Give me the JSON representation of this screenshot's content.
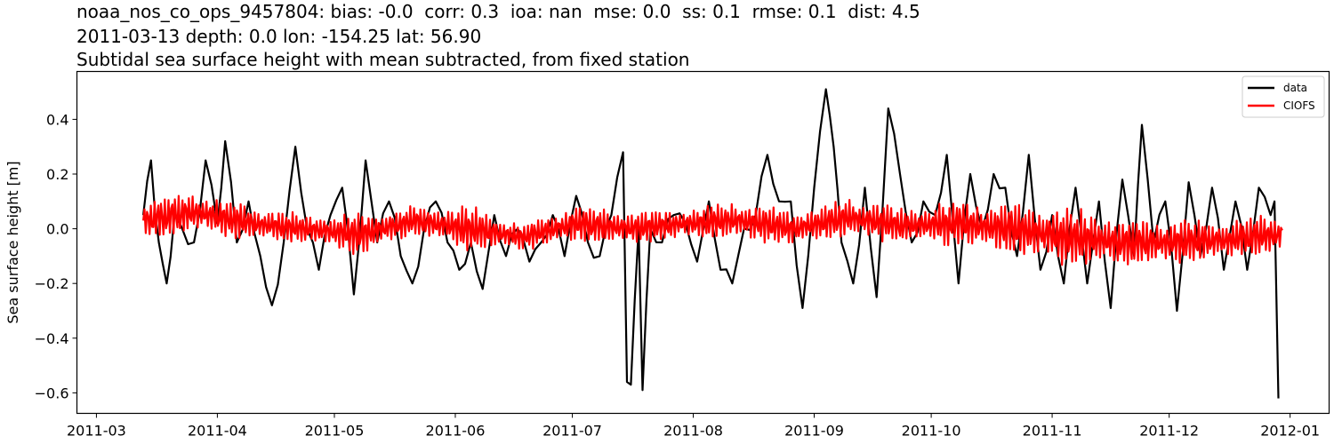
{
  "title_lines": [
    "noaa_nos_co_ops_9457804: bias: -0.0  corr: 0.3  ioa: nan  mse: 0.0  ss: 0.1  rmse: 0.1  dist: 4.5",
    "2011-03-13 depth: 0.0 lon: -154.25 lat: 56.90",
    "Subtidal sea surface height with mean subtracted, from fixed station"
  ],
  "chart_data": {
    "type": "line",
    "title": "noaa_nos_co_ops_9457804: bias: -0.0  corr: 0.3  ioa: nan  mse: 0.0  ss: 0.1  rmse: 0.1  dist: 4.5 / 2011-03-13 depth: 0.0 lon: -154.25 lat: 56.90 / Subtidal sea surface height with mean subtracted, from fixed station",
    "xlabel": "",
    "ylabel": "Sea surface height [m]",
    "ylim": [
      -0.675,
      0.575
    ],
    "xlim": [
      "2011-02-24",
      "2012-01-11"
    ],
    "grid": false,
    "legend_position": "upper right",
    "x_ticks": [
      "2011-03",
      "2011-04",
      "2011-05",
      "2011-06",
      "2011-07",
      "2011-08",
      "2011-09",
      "2011-10",
      "2011-11",
      "2011-12",
      "2012-01"
    ],
    "y_ticks": [
      "0.4",
      "0.2",
      "0.0",
      "−0.2",
      "−0.4",
      "−0.6"
    ],
    "y_tick_values": [
      0.4,
      0.2,
      0.0,
      -0.2,
      -0.4,
      -0.6
    ],
    "series": [
      {
        "name": "data",
        "color": "#000000",
        "x": [
          "2011-03-13",
          "2011-03-15",
          "2011-03-17",
          "2011-03-19",
          "2011-03-21",
          "2011-03-23",
          "2011-03-26",
          "2011-03-29",
          "2011-04-01",
          "2011-04-03",
          "2011-04-06",
          "2011-04-09",
          "2011-04-12",
          "2011-04-15",
          "2011-04-18",
          "2011-04-21",
          "2011-04-24",
          "2011-04-27",
          "2011-04-30",
          "2011-05-03",
          "2011-05-06",
          "2011-05-09",
          "2011-05-12",
          "2011-05-15",
          "2011-05-18",
          "2011-05-21",
          "2011-05-24",
          "2011-05-27",
          "2011-05-30",
          "2011-06-02",
          "2011-06-05",
          "2011-06-08",
          "2011-06-11",
          "2011-06-14",
          "2011-06-17",
          "2011-06-20",
          "2011-06-23",
          "2011-06-26",
          "2011-06-29",
          "2011-07-02",
          "2011-07-05",
          "2011-07-08",
          "2011-07-11",
          "2011-07-14",
          "2011-07-15",
          "2011-07-16",
          "2011-07-18",
          "2011-07-19",
          "2011-07-21",
          "2011-07-24",
          "2011-07-27",
          "2011-07-30",
          "2011-08-02",
          "2011-08-05",
          "2011-08-08",
          "2011-08-11",
          "2011-08-14",
          "2011-08-17",
          "2011-08-20",
          "2011-08-23",
          "2011-08-26",
          "2011-08-29",
          "2011-09-01",
          "2011-09-04",
          "2011-09-06",
          "2011-09-08",
          "2011-09-11",
          "2011-09-14",
          "2011-09-17",
          "2011-09-20",
          "2011-09-23",
          "2011-09-26",
          "2011-09-29",
          "2011-10-02",
          "2011-10-05",
          "2011-10-08",
          "2011-10-11",
          "2011-10-14",
          "2011-10-17",
          "2011-10-20",
          "2011-10-23",
          "2011-10-26",
          "2011-10-29",
          "2011-11-01",
          "2011-11-04",
          "2011-11-07",
          "2011-11-10",
          "2011-11-13",
          "2011-11-16",
          "2011-11-19",
          "2011-11-22",
          "2011-11-24",
          "2011-11-27",
          "2011-11-30",
          "2011-12-03",
          "2011-12-06",
          "2011-12-09",
          "2011-12-12",
          "2011-12-15",
          "2011-12-18",
          "2011-12-21",
          "2011-12-24",
          "2011-12-27",
          "2011-12-28",
          "2011-12-29"
        ],
        "values": [
          0.05,
          0.25,
          -0.05,
          -0.2,
          0.05,
          0.0,
          -0.05,
          0.25,
          0.02,
          0.32,
          -0.05,
          0.1,
          -0.1,
          -0.28,
          -0.05,
          0.3,
          0.0,
          -0.15,
          0.05,
          0.15,
          -0.24,
          0.25,
          -0.05,
          0.1,
          -0.1,
          -0.2,
          0.0,
          0.1,
          -0.05,
          -0.15,
          -0.05,
          -0.22,
          0.05,
          -0.1,
          0.0,
          -0.12,
          -0.05,
          0.05,
          -0.1,
          0.12,
          -0.05,
          -0.1,
          0.05,
          0.28,
          -0.56,
          -0.57,
          0.0,
          -0.59,
          0.0,
          -0.05,
          0.05,
          0.02,
          -0.12,
          0.1,
          -0.15,
          -0.2,
          0.0,
          0.05,
          0.27,
          0.1,
          0.1,
          -0.29,
          0.15,
          0.51,
          0.3,
          -0.05,
          -0.2,
          0.15,
          -0.25,
          0.44,
          0.2,
          -0.05,
          0.1,
          0.05,
          0.27,
          -0.2,
          0.2,
          0.0,
          0.2,
          0.15,
          -0.1,
          0.27,
          -0.15,
          0.05,
          -0.2,
          0.15,
          -0.2,
          0.1,
          -0.29,
          0.18,
          -0.1,
          0.38,
          -0.05,
          0.1,
          -0.3,
          0.17,
          -0.1,
          0.15,
          -0.15,
          0.1,
          -0.15,
          0.15,
          0.05,
          0.1,
          -0.62
        ]
      },
      {
        "name": "CIOFS",
        "color": "#ff0000",
        "x_start": "2011-03-13",
        "x_end": "2011-12-30",
        "description": "tidal-residual model output oscillating roughly ±0.1 m around 0, with envelope peaking near 0.15–0.2 and dipping to about −0.25 in Nov",
        "envelope_mean": [
          0.03,
          0.06,
          0.02,
          0.0,
          -0.02,
          0.03,
          0.0,
          -0.03,
          0.02,
          0.0,
          0.02,
          0.03,
          0.0,
          0.04,
          0.01,
          0.02,
          0.0,
          -0.03,
          -0.05,
          -0.05,
          -0.04,
          -0.02
        ],
        "envelope_amplitude": [
          0.1,
          0.08,
          0.07,
          0.06,
          0.08,
          0.06,
          0.09,
          0.05,
          0.08,
          0.07,
          0.06,
          0.08,
          0.07,
          0.08,
          0.07,
          0.09,
          0.1,
          0.12,
          0.1,
          0.09,
          0.08,
          0.08
        ],
        "extremes": {
          "max": 0.21,
          "min": -0.26
        }
      }
    ]
  },
  "legend": {
    "items": [
      {
        "label": "data",
        "color": "#000000"
      },
      {
        "label": "CIOFS",
        "color": "#ff0000"
      }
    ]
  }
}
